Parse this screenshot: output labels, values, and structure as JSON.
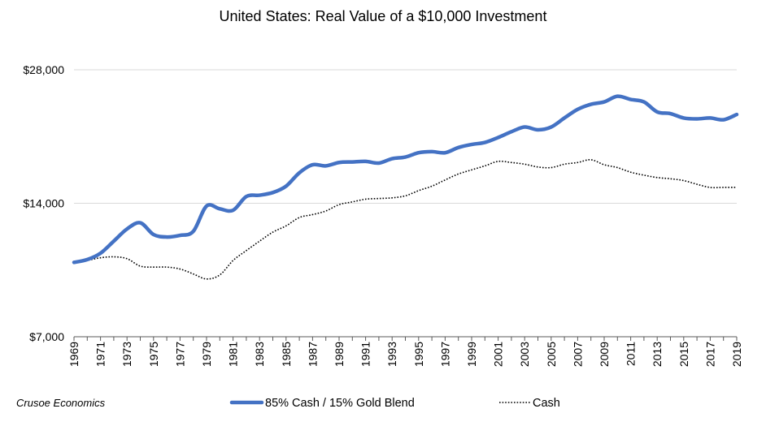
{
  "colors": {
    "blend": "#4472c4",
    "cash": "#000000",
    "grid": "#d9d9d9",
    "axis": "#595959"
  },
  "chart_data": {
    "type": "line",
    "title": "United States: Real Value of a $10,000 Investment",
    "xlabel": "",
    "ylabel": "",
    "scale": "log",
    "ylim": [
      7000,
      28000
    ],
    "xlim": [
      1969,
      2019
    ],
    "yticks": [
      {
        "value": 7000,
        "label": "$7,000"
      },
      {
        "value": 14000,
        "label": "$14,000"
      },
      {
        "value": 28000,
        "label": "$28,000"
      }
    ],
    "xtick_labels": [
      "1969",
      "1971",
      "1973",
      "1975",
      "1977",
      "1979",
      "1981",
      "1983",
      "1985",
      "1987",
      "1989",
      "1991",
      "1993",
      "1995",
      "1997",
      "1999",
      "2001",
      "2003",
      "2005",
      "2007",
      "2009",
      "2011",
      "2013",
      "2015",
      "2017",
      "2019"
    ],
    "grid": "horizontal",
    "legend": "bottom",
    "credit": "Crusoe Economics",
    "x": [
      1969,
      1970,
      1971,
      1972,
      1973,
      1974,
      1975,
      1976,
      1977,
      1978,
      1979,
      1980,
      1981,
      1982,
      1983,
      1984,
      1985,
      1986,
      1987,
      1988,
      1989,
      1990,
      1991,
      1992,
      1993,
      1994,
      1995,
      1996,
      1997,
      1998,
      1999,
      2000,
      2001,
      2002,
      2003,
      2004,
      2005,
      2006,
      2007,
      2008,
      2009,
      2010,
      2011,
      2012,
      2013,
      2014,
      2015,
      2016,
      2017,
      2018,
      2019
    ],
    "series": [
      {
        "name": "85% Cash / 15% Gold Blend",
        "values": [
          10300,
          10450,
          10800,
          11500,
          12250,
          12650,
          11900,
          11750,
          11850,
          12100,
          13800,
          13600,
          13500,
          14500,
          14600,
          14800,
          15300,
          16400,
          17100,
          17000,
          17300,
          17350,
          17400,
          17250,
          17650,
          17800,
          18200,
          18300,
          18200,
          18700,
          19000,
          19200,
          19700,
          20300,
          20800,
          20500,
          20800,
          21800,
          22800,
          23400,
          23700,
          24400,
          24000,
          23700,
          22500,
          22300,
          21800,
          21700,
          21800,
          21600,
          22200
        ]
      },
      {
        "name": "Cash",
        "values": [
          10250,
          10400,
          10550,
          10600,
          10500,
          10100,
          10050,
          10050,
          9950,
          9700,
          9450,
          9650,
          10400,
          10950,
          11500,
          12050,
          12450,
          13000,
          13200,
          13450,
          13900,
          14100,
          14300,
          14350,
          14400,
          14550,
          14950,
          15300,
          15800,
          16300,
          16650,
          17000,
          17400,
          17300,
          17150,
          16900,
          16850,
          17150,
          17300,
          17550,
          17100,
          16850,
          16450,
          16200,
          16000,
          15900,
          15750,
          15450,
          15200,
          15200,
          15200
        ]
      }
    ]
  }
}
